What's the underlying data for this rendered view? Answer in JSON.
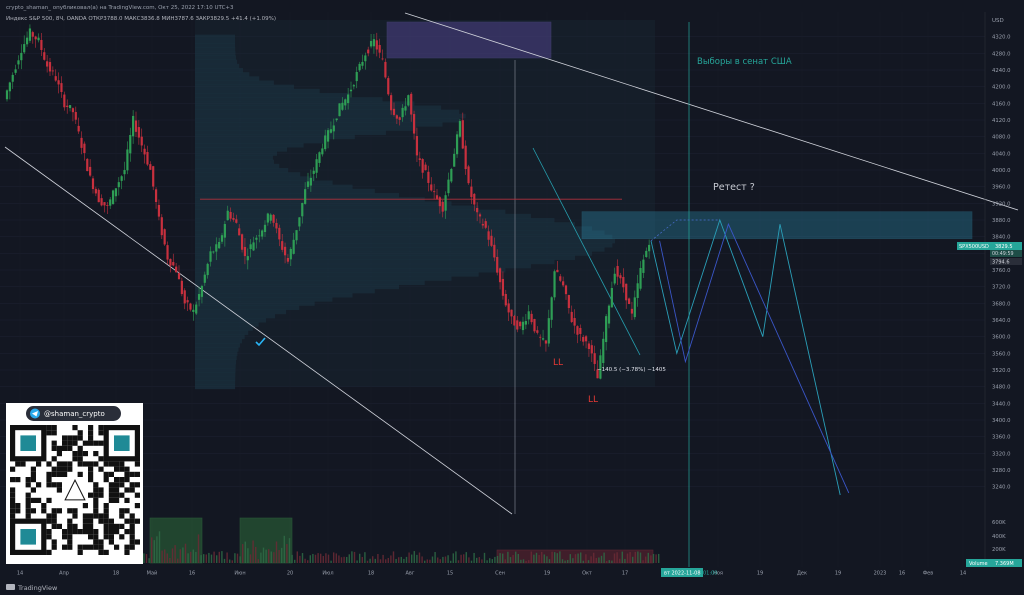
{
  "window": {
    "meta_line": "crypto_shaman_ опубликовал(а) на TradingView.com, Окт 25, 2022 17:10 UTC+3",
    "symbol_line": "Индекс S&P 500, 8Ч, OANDA  ОТКР3788.0  МАКС3836.8  МИН3787.6  ЗАКР3829.5  +41.4 (+1.09%)",
    "brand": "TradingView",
    "currency": "USD"
  },
  "promo": {
    "handle": "@shaman_crypto",
    "qr_alt": "QR code"
  },
  "annotations": {
    "elections": "Выборы в сенат США",
    "retest": "Ретест ?",
    "ll_1": "LL",
    "ll_2": "LL",
    "measure": "−140.5 (−3.78%) −1405",
    "date_badge": "вт 2022-11-08",
    "time_badge": "01:00",
    "volume_label": "Volume",
    "volume_value": "7.369M",
    "price_tag_symbol": "SPX500USD",
    "price_tag_value": "3829.5",
    "price_tag_timer": "00:49:59",
    "price_low_tag": "3794.6"
  },
  "chart_data": {
    "type": "candlestick",
    "y_range": [
      3160,
      4360
    ],
    "y_ticks": [
      4320,
      4280,
      4240,
      4200,
      4160,
      4120,
      4080,
      4040,
      4000,
      3960,
      3920,
      3880,
      3840,
      3800,
      3760,
      3720,
      3680,
      3640,
      3600,
      3560,
      3520,
      3480,
      3440,
      3400,
      3360,
      3320,
      3280,
      3240
    ],
    "volume_ticks": [
      "600K",
      "400K",
      "200K"
    ],
    "x_ticks": [
      "14",
      "Апр",
      "18",
      "Май",
      "16",
      "Июн",
      "20",
      "Июл",
      "18",
      "Авг",
      "15",
      "Сен",
      "19",
      "Окт",
      "17",
      "Ноя",
      "19",
      "Дек",
      "19",
      "2023",
      "16",
      "Фев",
      "14"
    ],
    "price_path": [
      [
        0,
        4170
      ],
      [
        1,
        4230
      ],
      [
        2,
        4290
      ],
      [
        3,
        4330
      ],
      [
        4,
        4310
      ],
      [
        5,
        4250
      ],
      [
        6,
        4220
      ],
      [
        7,
        4160
      ],
      [
        8,
        4140
      ],
      [
        9,
        4060
      ],
      [
        10,
        3980
      ],
      [
        11,
        3930
      ],
      [
        12,
        3910
      ],
      [
        13,
        3960
      ],
      [
        14,
        4000
      ],
      [
        15,
        4120
      ],
      [
        16,
        4060
      ],
      [
        17,
        4000
      ],
      [
        18,
        3880
      ],
      [
        19,
        3790
      ],
      [
        20,
        3760
      ],
      [
        21,
        3680
      ],
      [
        22,
        3660
      ],
      [
        23,
        3720
      ],
      [
        24,
        3800
      ],
      [
        25,
        3820
      ],
      [
        26,
        3900
      ],
      [
        27,
        3870
      ],
      [
        28,
        3790
      ],
      [
        29,
        3830
      ],
      [
        30,
        3860
      ],
      [
        31,
        3900
      ],
      [
        32,
        3830
      ],
      [
        33,
        3780
      ],
      [
        34,
        3860
      ],
      [
        35,
        3950
      ],
      [
        36,
        4000
      ],
      [
        37,
        4060
      ],
      [
        38,
        4100
      ],
      [
        39,
        4150
      ],
      [
        40,
        4180
      ],
      [
        41,
        4230
      ],
      [
        42,
        4280
      ],
      [
        43,
        4310
      ],
      [
        44,
        4260
      ],
      [
        45,
        4150
      ],
      [
        46,
        4120
      ],
      [
        47,
        4180
      ],
      [
        48,
        4030
      ],
      [
        49,
        3990
      ],
      [
        50,
        3940
      ],
      [
        51,
        3910
      ],
      [
        52,
        4010
      ],
      [
        53,
        4110
      ],
      [
        54,
        3960
      ],
      [
        55,
        3890
      ],
      [
        56,
        3860
      ],
      [
        57,
        3790
      ],
      [
        58,
        3700
      ],
      [
        59,
        3640
      ],
      [
        60,
        3620
      ],
      [
        61,
        3660
      ],
      [
        62,
        3600
      ],
      [
        63,
        3580
      ],
      [
        64,
        3760
      ],
      [
        65,
        3720
      ],
      [
        66,
        3640
      ],
      [
        67,
        3600
      ],
      [
        68,
        3580
      ],
      [
        69,
        3500
      ],
      [
        70,
        3640
      ],
      [
        71,
        3760
      ],
      [
        72,
        3720
      ],
      [
        73,
        3650
      ],
      [
        74,
        3760
      ],
      [
        75,
        3830
      ]
    ],
    "retest_zone": [
      3835,
      3900
    ],
    "resistance_level": 3930,
    "projection": [
      [
        75,
        3830
      ],
      [
        78,
        3560
      ],
      [
        83,
        3880
      ],
      [
        88,
        3600
      ],
      [
        90,
        3870
      ],
      [
        97,
        3220
      ]
    ],
    "projection2": [
      [
        76,
        3830
      ],
      [
        79,
        3540
      ],
      [
        84,
        3870
      ],
      [
        98,
        3225
      ]
    ]
  }
}
